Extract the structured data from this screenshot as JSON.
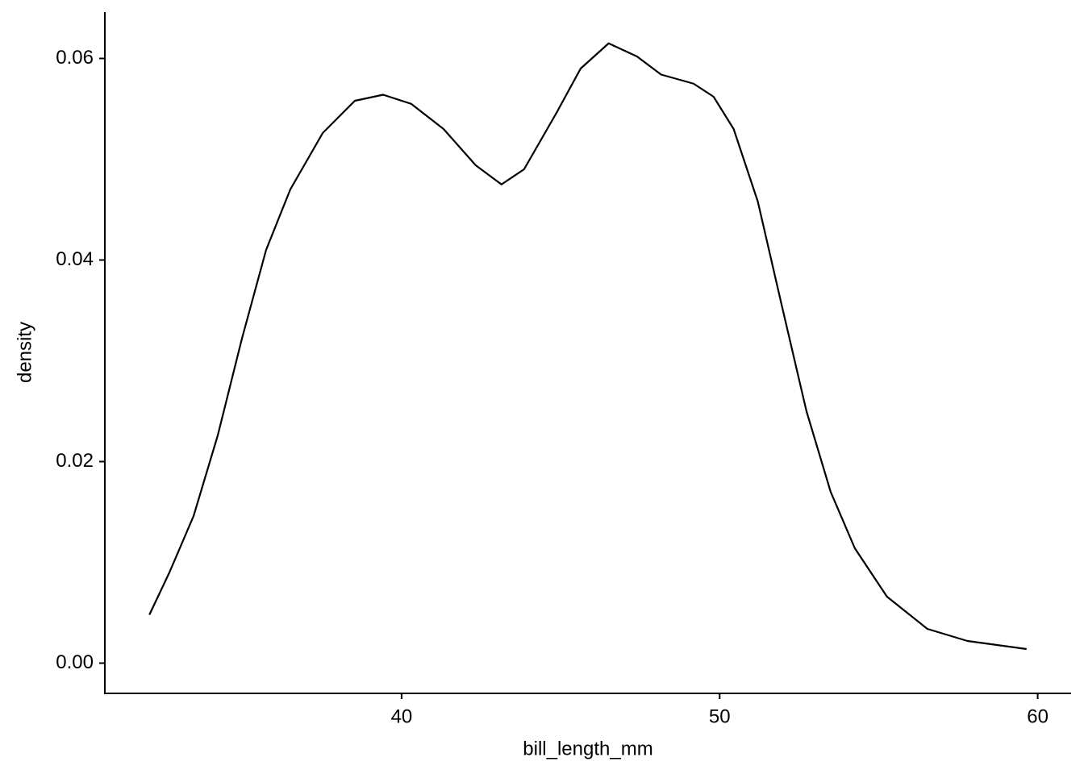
{
  "chart_data": {
    "type": "line",
    "x_label": "bill_length_mm",
    "y_label": "density",
    "x": [
      32.07,
      32.7,
      33.46,
      34.22,
      34.98,
      35.74,
      36.5,
      37.52,
      38.53,
      39.42,
      40.3,
      41.32,
      42.33,
      43.14,
      43.85,
      44.87,
      45.63,
      46.51,
      47.4,
      48.16,
      49.18,
      49.81,
      50.44,
      51.2,
      51.96,
      52.73,
      53.49,
      54.25,
      55.26,
      56.53,
      57.79,
      59.65
    ],
    "series": [
      {
        "color": "#000000",
        "values": [
          0.0048,
          0.009,
          0.0146,
          0.0226,
          0.0322,
          0.041,
          0.047,
          0.0526,
          0.0558,
          0.0564,
          0.0555,
          0.053,
          0.0494,
          0.0475,
          0.049,
          0.0546,
          0.059,
          0.0615,
          0.0602,
          0.0584,
          0.0575,
          0.0562,
          0.053,
          0.0458,
          0.0354,
          0.025,
          0.017,
          0.0114,
          0.0066,
          0.0034,
          0.0022,
          0.0014
        ]
      }
    ],
    "xlim": [
      30.67,
      61.05
    ],
    "ylim": [
      -0.003,
      0.0646
    ],
    "xticks": [
      40,
      50,
      60
    ],
    "yticks": [
      {
        "value": 0,
        "label": "0.00"
      },
      {
        "value": 0.02,
        "label": "0.02"
      },
      {
        "value": 0.04,
        "label": "0.04"
      },
      {
        "value": 0.06,
        "label": "0.06"
      }
    ],
    "grid": false
  }
}
